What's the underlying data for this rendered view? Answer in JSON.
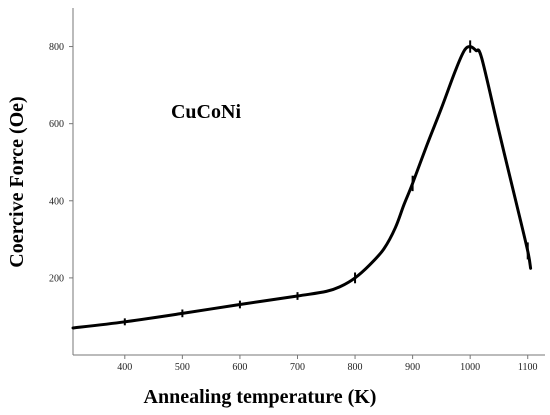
{
  "chart_data": {
    "type": "line",
    "title": "",
    "annotation": "CuCoNi",
    "xlabel": "Annealing temperature (K)",
    "ylabel": "Coercive Force (Oe)",
    "xlim": [
      310,
      1130
    ],
    "ylim": [
      0,
      900
    ],
    "xticks": [
      400,
      500,
      600,
      700,
      800,
      900,
      1000,
      1100
    ],
    "yticks": [
      200,
      400,
      600,
      800
    ],
    "grid": false,
    "series": [
      {
        "color": "#000000",
        "x": [
          310,
          400,
          500,
          600,
          700,
          750,
          775,
          800,
          825,
          850,
          870,
          885,
          900,
          925,
          950,
          975,
          990,
          1000,
          1010,
          1020,
          1050,
          1080,
          1100,
          1105
        ],
        "y": [
          70,
          86,
          108,
          131,
          153,
          165,
          178,
          200,
          233,
          275,
          330,
          390,
          445,
          545,
          640,
          740,
          790,
          800,
          790,
          770,
          580,
          395,
          270,
          225
        ],
        "error_x": [
          400,
          500,
          600,
          700,
          800,
          900,
          1000,
          1100
        ],
        "error_y": [
          86,
          108,
          131,
          153,
          200,
          445,
          800,
          270
        ],
        "error_halfwidth": [
          9,
          10,
          10,
          10,
          14,
          20,
          16,
          22
        ]
      }
    ]
  }
}
